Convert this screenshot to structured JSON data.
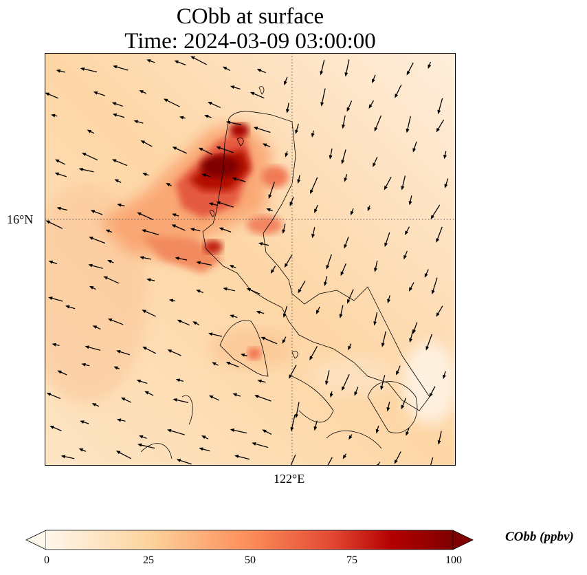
{
  "chart_data": {
    "type": "heatmap",
    "title": "CObb at surface",
    "subtitle": "Time: 2024-03-09 03:00:00",
    "variable": "CObb",
    "units": "ppbv",
    "xtick_labels": [
      "122°E"
    ],
    "ytick_labels": [
      "16°N"
    ],
    "colorbar": {
      "label": "CObb (ppbv)",
      "range": [
        0,
        100
      ],
      "ticks": [
        "0",
        "25",
        "50",
        "75",
        "100"
      ],
      "extend": "both",
      "colormap": [
        "#fff7ec",
        "#fdd49e",
        "#fc8d59",
        "#e34a33",
        "#b30000",
        "#7f0000"
      ]
    },
    "grid": "dotted at 16°N and 122°E",
    "overlays": [
      "coastlines",
      "wind vectors"
    ]
  }
}
